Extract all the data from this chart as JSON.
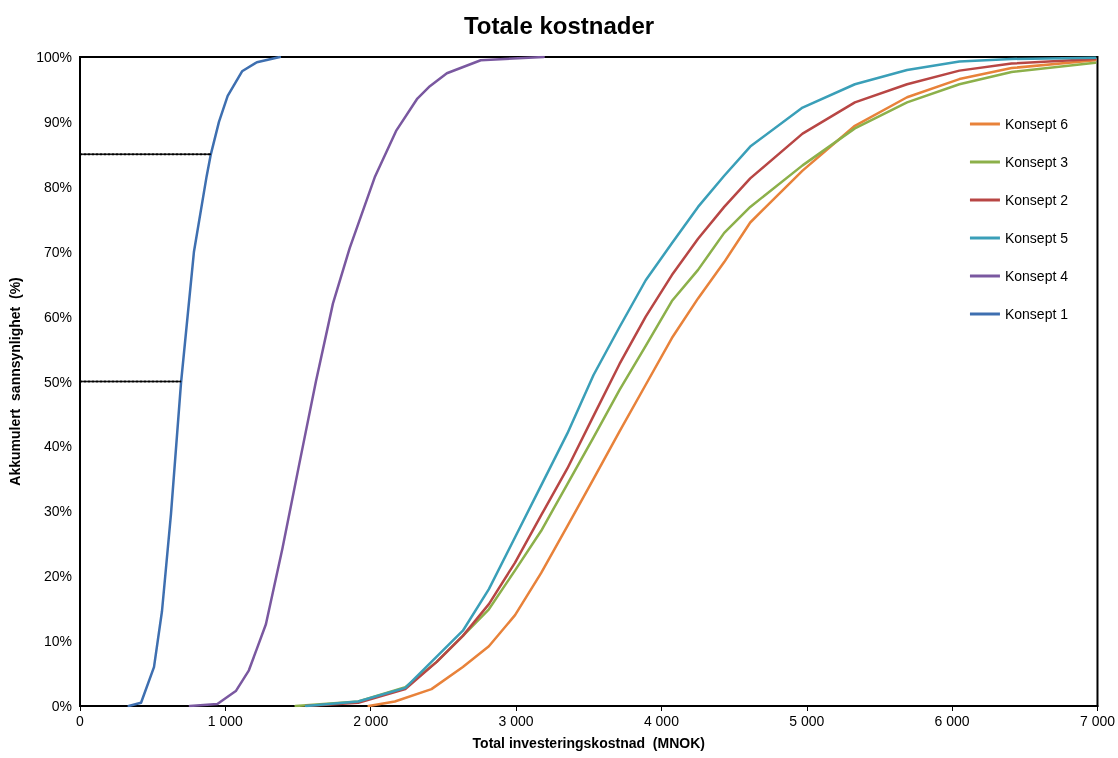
{
  "chart_data": {
    "type": "line",
    "title": "Totale kostnader",
    "xlabel": "Total investeringskostnad  (MNOK)",
    "ylabel": "Akkumulert  sannsynlighet  (%)",
    "xlim": [
      0,
      7000
    ],
    "xticks": [
      0,
      {
        "value": 1000,
        "label": "1 000"
      },
      {
        "value": 2000,
        "label": "2 000"
      },
      {
        "value": 3000,
        "label": "3 000"
      },
      {
        "value": 4000,
        "label": "4 000"
      },
      {
        "value": 5000,
        "label": "5 000"
      },
      {
        "value": 6000,
        "label": "6 000"
      },
      {
        "value": 7000,
        "label": "7 000"
      }
    ],
    "ylim": [
      0,
      100
    ],
    "yticks": [
      {
        "value": 0,
        "label": "0%"
      },
      {
        "value": 10,
        "label": "10%"
      },
      {
        "value": 20,
        "label": "20%"
      },
      {
        "value": 30,
        "label": "30%"
      },
      {
        "value": 40,
        "label": "40%"
      },
      {
        "value": 50,
        "label": "50%"
      },
      {
        "value": 60,
        "label": "60%"
      },
      {
        "value": 70,
        "label": "70%"
      },
      {
        "value": 80,
        "label": "80%"
      },
      {
        "value": 90,
        "label": "90%"
      },
      {
        "value": 100,
        "label": "100%"
      }
    ],
    "grid": false,
    "legend": "top right",
    "marker": "none",
    "line_style": "solid",
    "series": [
      {
        "name": "Konsept 6",
        "color": "#e8823a",
        "x": [
          1986,
          2166,
          2418,
          2634,
          2813,
          2993,
          3173,
          3353,
          3533,
          3712,
          3892,
          4072,
          4252,
          4432,
          4611,
          4971,
          5331,
          5690,
          6050,
          6409,
          6985
        ],
        "values": [
          0,
          0.7,
          2.6,
          6,
          9.2,
          14,
          20.5,
          27.7,
          35,
          42.3,
          49.5,
          56.7,
          62.8,
          68.4,
          74.5,
          82.5,
          89.4,
          93.8,
          96.6,
          98.3,
          99.5
        ]
      },
      {
        "name": "Konsept 3",
        "color": "#8cb04a",
        "x": [
          1483,
          1914,
          2238,
          2454,
          2634,
          2813,
          2993,
          3173,
          3353,
          3533,
          3712,
          3892,
          4072,
          4252,
          4432,
          4611,
          4971,
          5331,
          5690,
          6050,
          6409,
          6985
        ],
        "values": [
          0,
          0.7,
          2.9,
          6.8,
          10.8,
          14.9,
          20.9,
          27,
          34.2,
          41.4,
          48.7,
          55.5,
          62.4,
          67.2,
          72.9,
          76.9,
          83.3,
          89,
          93,
          95.8,
          97.7,
          99.1
        ]
      },
      {
        "name": "Konsept 2",
        "color": "#b84644",
        "x": [
          1555,
          1914,
          2238,
          2454,
          2634,
          2813,
          2993,
          3173,
          3353,
          3533,
          3712,
          3892,
          4072,
          4252,
          4432,
          4611,
          4971,
          5331,
          5690,
          6050,
          6409,
          6985
        ],
        "values": [
          0,
          0.5,
          2.6,
          6.8,
          10.8,
          15.7,
          22.1,
          29.4,
          36.6,
          44.7,
          52.7,
          60,
          66.4,
          72,
          76.9,
          81.3,
          88.2,
          93,
          95.8,
          97.9,
          99,
          99.7
        ]
      },
      {
        "name": "Konsept 5",
        "color": "#3a9fb8",
        "x": [
          1555,
          1914,
          2238,
          2454,
          2634,
          2813,
          2993,
          3173,
          3353,
          3533,
          3712,
          3892,
          4072,
          4252,
          4432,
          4611,
          4971,
          5331,
          5690,
          6050,
          6409,
          6985
        ],
        "values": [
          0,
          0.7,
          2.8,
          7.6,
          11.6,
          18,
          26,
          34,
          42,
          51,
          58.4,
          65.6,
          71.3,
          76.9,
          81.7,
          86.2,
          92.2,
          95.8,
          98,
          99.3,
          99.7,
          99.9
        ]
      },
      {
        "name": "Konsept 4",
        "color": "#7a58a0",
        "x": [
          756,
          945,
          1072,
          1162,
          1279,
          1393,
          1506,
          1623,
          1740,
          1856,
          2030,
          2177,
          2321,
          2407,
          2524,
          2757,
          3190
        ],
        "values": [
          0,
          0.3,
          2.3,
          5.5,
          12.6,
          24.3,
          37,
          50,
          62,
          70.6,
          81.6,
          88.7,
          93.6,
          95.5,
          97.5,
          99.5,
          100
        ]
      },
      {
        "name": "Konsept 1",
        "color": "#3e6fb0",
        "x": [
          335,
          420,
          509,
          564,
          626,
          695,
          784,
          871,
          900,
          956,
          1016,
          1115,
          1217,
          1375
        ],
        "values": [
          0,
          0.5,
          6,
          14.6,
          29.6,
          49.8,
          70,
          81.6,
          85,
          90,
          94,
          97.8,
          99.2,
          100
        ]
      },
      {
        "color": "#000000",
        "line_style": "dotted",
        "x": [
          0,
          908
        ],
        "values": [
          85,
          85
        ]
      },
      {
        "color": "#000000",
        "line_style": "dotted",
        "x": [
          0,
          690
        ],
        "values": [
          50,
          50
        ]
      }
    ]
  }
}
